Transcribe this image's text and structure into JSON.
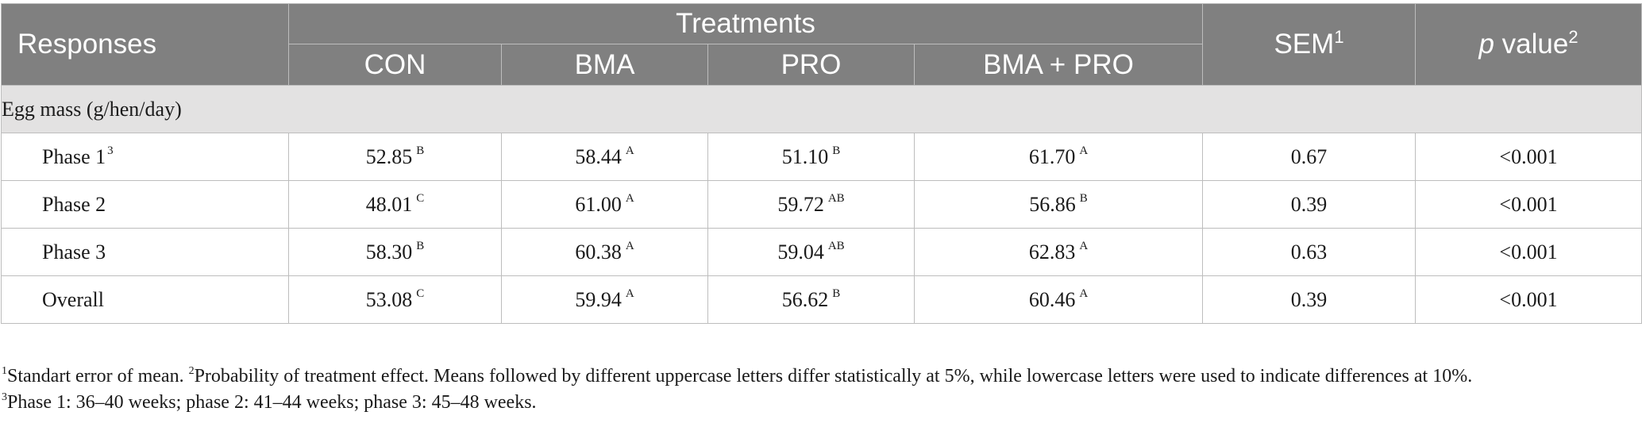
{
  "table": {
    "header": {
      "responses": "Responses",
      "treatments": "Treatments",
      "sem": "SEM",
      "sem_mark": "1",
      "p_italic": "p",
      "p_rest": " value",
      "p_mark": "2",
      "columns": [
        "CON",
        "BMA",
        "PRO",
        "BMA + PRO"
      ]
    },
    "section": "Egg mass (g/hen/day)",
    "rows": [
      {
        "label": "Phase 1",
        "label_mark": "3",
        "cells": [
          {
            "v": "52.85",
            "s": "B"
          },
          {
            "v": "58.44",
            "s": "A"
          },
          {
            "v": "51.10",
            "s": "B"
          },
          {
            "v": "61.70",
            "s": "A"
          }
        ],
        "sem": "0.67",
        "p": "<0.001"
      },
      {
        "label": "Phase 2",
        "label_mark": "",
        "cells": [
          {
            "v": "48.01",
            "s": "C"
          },
          {
            "v": "61.00",
            "s": "A"
          },
          {
            "v": "59.72",
            "s": "AB"
          },
          {
            "v": "56.86",
            "s": "B"
          }
        ],
        "sem": "0.39",
        "p": "<0.001"
      },
      {
        "label": "Phase 3",
        "label_mark": "",
        "cells": [
          {
            "v": "58.30",
            "s": "B"
          },
          {
            "v": "60.38",
            "s": "A"
          },
          {
            "v": "59.04",
            "s": "AB"
          },
          {
            "v": "62.83",
            "s": "A"
          }
        ],
        "sem": "0.63",
        "p": "<0.001"
      },
      {
        "label": "Overall",
        "label_mark": "",
        "cells": [
          {
            "v": "53.08",
            "s": "C"
          },
          {
            "v": "59.94",
            "s": "A"
          },
          {
            "v": "56.62",
            "s": "B"
          },
          {
            "v": "60.46",
            "s": "A"
          }
        ],
        "sem": "0.39",
        "p": "<0.001"
      }
    ]
  },
  "footnotes": {
    "note1_mark": "1",
    "note1": "Standart error of mean. ",
    "note2_mark": "2",
    "note2": "Probability of treatment effect. Means followed by different uppercase letters differ statistically at 5%, while lowercase letters were used to indicate differences at 10%.",
    "note3_mark": "3",
    "note3": "Phase 1: 36–40 weeks; phase 2: 41–44 weeks; phase 3: 45–48 weeks."
  },
  "colors": {
    "header_bg": "#808080",
    "section_bg": "#e3e2e2",
    "border": "#bdbdbd"
  }
}
